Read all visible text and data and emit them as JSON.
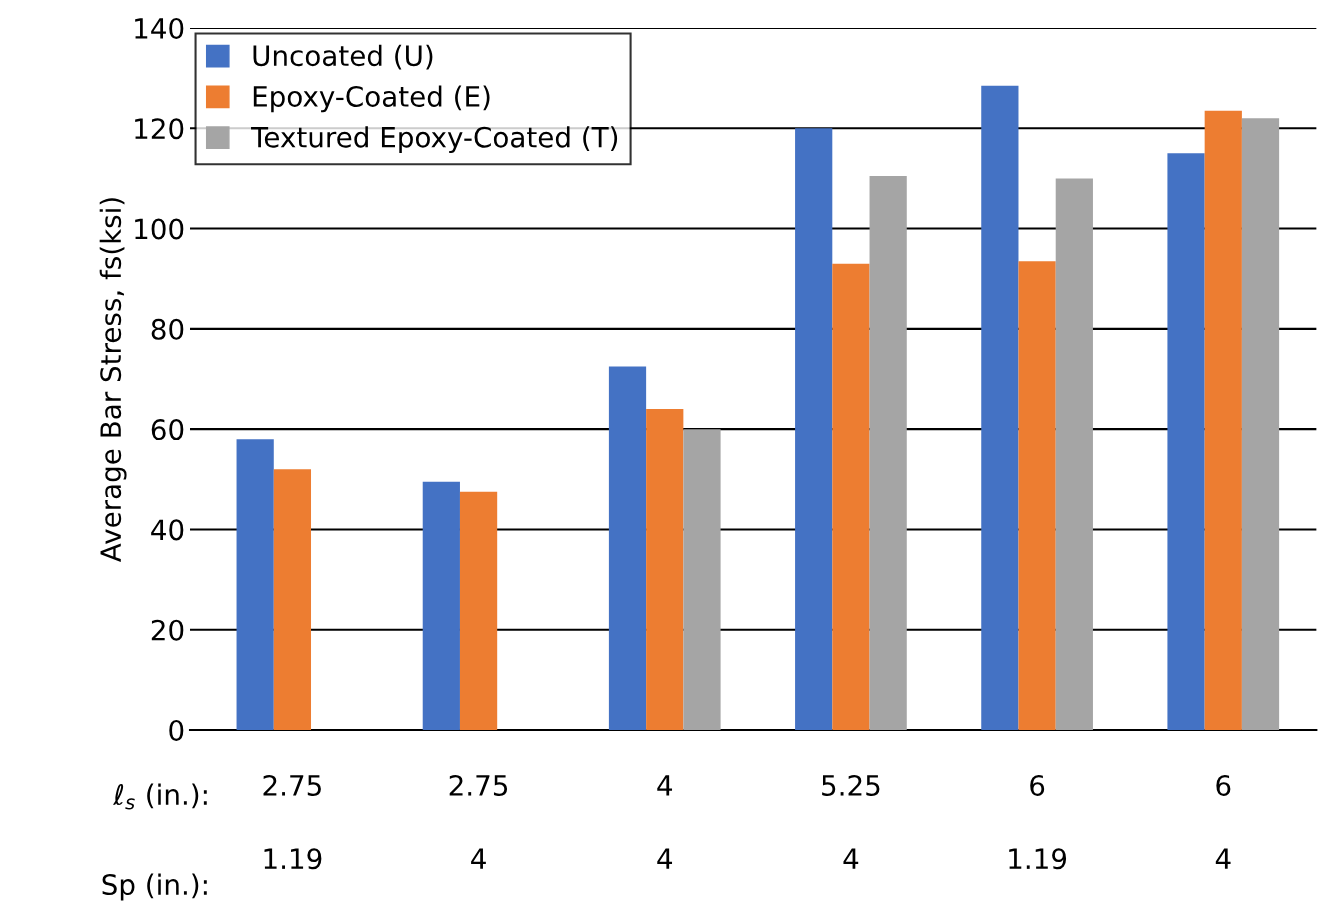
{
  "chart_data": {
    "type": "bar",
    "ylabel": "Average Bar Stress, fs(ksi)",
    "categories": [
      "2.75\n1.19",
      "2.75\n4",
      "4\n4",
      "5.25\n4",
      "6\n1.19",
      "6\n4"
    ],
    "series": [
      {
        "name": "Uncoated (U)",
        "color": "#4472c4",
        "values": [
          58,
          49.5,
          72.5,
          120,
          128.5,
          115
        ]
      },
      {
        "name": "Epoxy-Coated (E)",
        "color": "#ed7d31",
        "values": [
          52,
          47.5,
          64,
          93,
          93.5,
          123.5
        ]
      },
      {
        "name": "Textured Epoxy-Coated (T)",
        "color": "#a5a5a5",
        "values": [
          null,
          null,
          60,
          110.5,
          110,
          122
        ]
      }
    ],
    "annotations": [
      "ℓ$_{s}$ (in.):",
      "Sp (in.):"
    ],
    "ylim": [
      0,
      140
    ],
    "yticks": [
      0,
      20,
      40,
      60,
      80,
      100,
      120,
      140
    ],
    "grid": "y",
    "legend": "top left"
  }
}
